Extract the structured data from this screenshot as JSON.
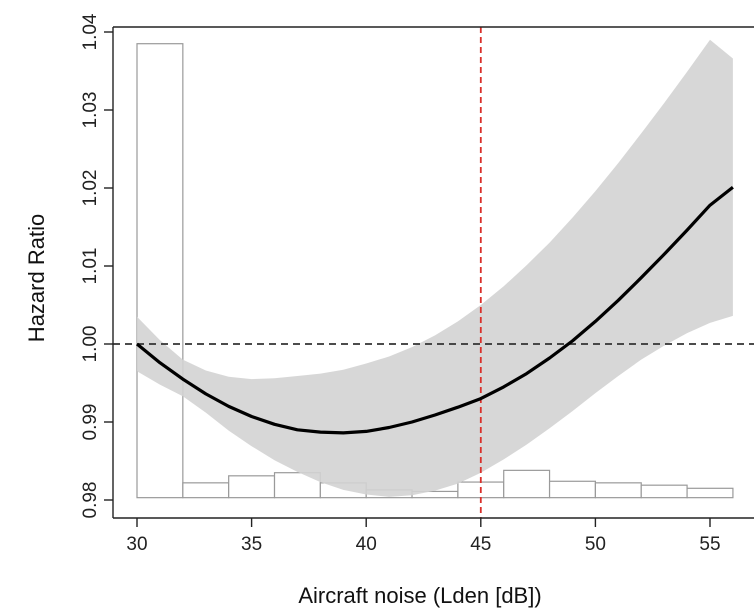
{
  "chart_data": {
    "type": "line",
    "title": "",
    "xlabel": "Aircraft noise (Lden [dB])",
    "ylabel": "Hazard Ratio",
    "xlim": [
      29.5,
      56.5
    ],
    "ylim": [
      0.98,
      1.04
    ],
    "x_ticks": [
      30,
      35,
      40,
      45,
      50,
      55
    ],
    "y_ticks": [
      0.98,
      0.99,
      1.0,
      1.01,
      1.02,
      1.03,
      1.04
    ],
    "x_tick_labels": [
      "30",
      "35",
      "40",
      "45",
      "50",
      "55"
    ],
    "y_tick_labels": [
      "0.98",
      "0.99",
      "1.00",
      "1.01",
      "1.02",
      "1.03",
      "1.04"
    ],
    "reference_lines": {
      "horizontal_hr": 1.0,
      "horizontal_color": "#333333",
      "vertical_x": 45,
      "vertical_color": "#d9302b"
    },
    "series": [
      {
        "x": [
          30,
          31,
          32,
          33,
          34,
          35,
          36,
          37,
          38,
          39,
          40,
          41,
          42,
          43,
          44,
          45,
          46,
          47,
          48,
          49,
          50,
          51,
          52,
          53,
          54,
          55,
          56
        ],
        "values": [
          1.0,
          0.9976,
          0.9955,
          0.9936,
          0.992,
          0.9907,
          0.9897,
          0.989,
          0.9887,
          0.9886,
          0.9888,
          0.9893,
          0.99,
          0.9909,
          0.9919,
          0.993,
          0.9945,
          0.9962,
          0.9982,
          1.0004,
          1.0029,
          1.0056,
          1.0085,
          1.0115,
          1.0146,
          1.0178,
          1.0201
        ],
        "lower": [
          0.9965,
          0.9948,
          0.9933,
          0.9912,
          0.9889,
          0.9869,
          0.9851,
          0.9836,
          0.9823,
          0.9813,
          0.9807,
          0.9804,
          0.9806,
          0.9812,
          0.9821,
          0.9835,
          0.9852,
          0.9871,
          0.9892,
          0.9914,
          0.9937,
          0.9959,
          0.998,
          0.9998,
          1.0014,
          1.0027,
          1.0036
        ],
        "upper": [
          1.0035,
          1.0005,
          0.998,
          0.9966,
          0.9958,
          0.9955,
          0.9956,
          0.9959,
          0.9962,
          0.9967,
          0.9975,
          0.9984,
          0.9996,
          1.0011,
          1.0029,
          1.005,
          1.0074,
          1.0101,
          1.013,
          1.0162,
          1.0196,
          1.0232,
          1.027,
          1.0309,
          1.0349,
          1.039,
          1.0366
        ],
        "line_color": "#000000",
        "band_color": "#d3d3d3"
      }
    ],
    "histogram": {
      "bin_edges": [
        30,
        32,
        34,
        36,
        38,
        40,
        42,
        44,
        46,
        48,
        50,
        52,
        54,
        56
      ],
      "tops": [
        1.0385,
        0.9822,
        0.9831,
        0.9835,
        0.9822,
        0.9813,
        0.9811,
        0.9823,
        0.9838,
        0.9824,
        0.9822,
        0.9819,
        0.9815
      ],
      "baseline": 0.9803,
      "edge_color": "#9a9a9a"
    }
  }
}
